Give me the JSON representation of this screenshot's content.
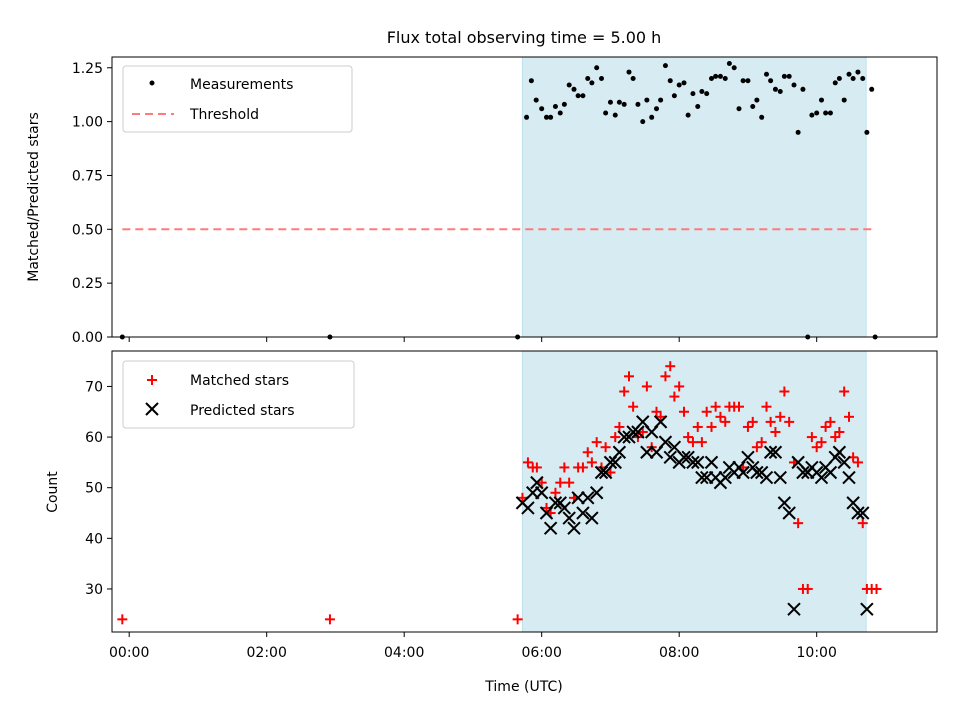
{
  "chart_data": [
    {
      "type": "scatter",
      "title": "Flux total observing time = 5.00 h",
      "xlabel": "",
      "ylabel": "Matched/Predicted stars",
      "xlim": [
        -0.25,
        11.75
      ],
      "ylim": [
        0,
        1.3
      ],
      "yticks": [
        0,
        0.25,
        0.5,
        0.75,
        1.0,
        1.25
      ],
      "ytick_labels": [
        "0.00",
        "0.25",
        "0.50",
        "0.75",
        "1.00",
        "1.25"
      ],
      "shaded_interval": [
        5.72,
        10.72
      ],
      "threshold": {
        "label": "Threshold",
        "value": 0.5,
        "x_range": [
          -0.1,
          10.85
        ],
        "color": "#ff7b7b"
      },
      "legend": [
        "Measurements",
        "Threshold"
      ],
      "legend_position": "upper-left",
      "series": [
        {
          "name": "Measurements",
          "color": "#000000",
          "x": [
            -0.1,
            2.92,
            5.65,
            5.78,
            5.85,
            5.92,
            6.0,
            6.07,
            6.13,
            6.2,
            6.27,
            6.33,
            6.4,
            6.47,
            6.53,
            6.6,
            6.67,
            6.73,
            6.8,
            6.87,
            6.93,
            7.0,
            7.07,
            7.13,
            7.2,
            7.27,
            7.33,
            7.4,
            7.47,
            7.53,
            7.6,
            7.67,
            7.73,
            7.8,
            7.87,
            7.93,
            8.0,
            8.07,
            8.13,
            8.2,
            8.27,
            8.33,
            8.4,
            8.47,
            8.53,
            8.6,
            8.67,
            8.73,
            8.8,
            8.87,
            8.93,
            9.0,
            9.07,
            9.13,
            9.2,
            9.27,
            9.33,
            9.4,
            9.47,
            9.53,
            9.6,
            9.67,
            9.73,
            9.8,
            9.87,
            9.93,
            10.0,
            10.07,
            10.13,
            10.2,
            10.27,
            10.33,
            10.4,
            10.47,
            10.53,
            10.6,
            10.67,
            10.73,
            10.8,
            10.85
          ],
          "y": [
            0.0,
            0.0,
            0.0,
            1.02,
            1.19,
            1.1,
            1.06,
            1.02,
            1.02,
            1.07,
            1.04,
            1.08,
            1.17,
            1.15,
            1.12,
            1.12,
            1.2,
            1.18,
            1.25,
            1.2,
            1.04,
            1.09,
            1.03,
            1.09,
            1.08,
            1.23,
            1.2,
            1.08,
            1.0,
            1.1,
            1.02,
            1.06,
            1.1,
            1.26,
            1.19,
            1.12,
            1.17,
            1.18,
            1.03,
            1.13,
            1.07,
            1.14,
            1.13,
            1.2,
            1.21,
            1.21,
            1.2,
            1.27,
            1.25,
            1.06,
            1.19,
            1.19,
            1.07,
            1.1,
            1.02,
            1.22,
            1.19,
            1.15,
            1.14,
            1.21,
            1.21,
            1.17,
            0.95,
            1.15,
            0.0,
            1.03,
            1.04,
            1.1,
            1.04,
            1.04,
            1.18,
            1.2,
            1.1,
            1.22,
            1.2,
            1.23,
            1.2,
            0.95,
            1.15,
            0.0
          ]
        }
      ]
    },
    {
      "type": "scatter",
      "title": "",
      "xlabel": "Time (UTC)",
      "ylabel": "Count",
      "xlim": [
        -0.25,
        11.75
      ],
      "ylim": [
        21.5,
        77
      ],
      "xticks": [
        0,
        2,
        4,
        6,
        8,
        10
      ],
      "xtick_labels": [
        "00:00",
        "02:00",
        "04:00",
        "06:00",
        "08:00",
        "10:00"
      ],
      "yticks": [
        30,
        40,
        50,
        60,
        70
      ],
      "ytick_labels": [
        "30",
        "40",
        "50",
        "60",
        "70"
      ],
      "shaded_interval": [
        5.72,
        10.72
      ],
      "legend": [
        "Matched stars",
        "Predicted stars"
      ],
      "legend_position": "upper-left",
      "series": [
        {
          "name": "Matched stars",
          "marker": "+",
          "color": "#ff0000",
          "x": [
            -0.1,
            2.92,
            5.65,
            5.72,
            5.8,
            5.87,
            5.93,
            6.0,
            6.07,
            6.13,
            6.2,
            6.27,
            6.33,
            6.4,
            6.47,
            6.53,
            6.6,
            6.67,
            6.73,
            6.8,
            6.87,
            6.93,
            7.0,
            7.07,
            7.13,
            7.2,
            7.27,
            7.33,
            7.4,
            7.47,
            7.53,
            7.6,
            7.67,
            7.73,
            7.8,
            7.87,
            7.93,
            8.0,
            8.07,
            8.13,
            8.2,
            8.27,
            8.33,
            8.4,
            8.47,
            8.53,
            8.6,
            8.67,
            8.73,
            8.8,
            8.87,
            8.93,
            9.0,
            9.07,
            9.13,
            9.2,
            9.27,
            9.33,
            9.4,
            9.47,
            9.53,
            9.6,
            9.67,
            9.73,
            9.8,
            9.87,
            9.93,
            10.0,
            10.07,
            10.13,
            10.2,
            10.27,
            10.33,
            10.4,
            10.47,
            10.53,
            10.6,
            10.67,
            10.73,
            10.8,
            10.87
          ],
          "y": [
            24,
            24,
            24,
            48,
            55,
            54,
            54,
            51,
            46,
            45,
            49,
            51,
            54,
            51,
            48,
            54,
            54,
            57,
            55,
            59,
            54,
            58,
            53,
            60,
            62,
            69,
            72,
            66,
            60,
            61,
            70,
            58,
            65,
            64,
            72,
            74,
            68,
            70,
            65,
            60,
            59,
            62,
            59,
            65,
            62,
            66,
            64,
            63,
            66,
            66,
            66,
            54,
            62,
            63,
            58,
            59,
            66,
            63,
            61,
            64,
            69,
            63,
            55,
            43,
            30,
            30,
            60,
            58,
            59,
            62,
            63,
            60,
            61,
            69,
            64,
            56,
            55,
            43,
            30,
            30,
            30
          ]
        },
        {
          "name": "Predicted stars",
          "marker": "x",
          "color": "#000000",
          "x": [
            5.72,
            5.8,
            5.87,
            5.93,
            6.0,
            6.07,
            6.13,
            6.2,
            6.27,
            6.33,
            6.4,
            6.47,
            6.53,
            6.6,
            6.67,
            6.73,
            6.8,
            6.87,
            6.93,
            7.0,
            7.07,
            7.13,
            7.2,
            7.27,
            7.33,
            7.4,
            7.47,
            7.53,
            7.6,
            7.67,
            7.73,
            7.8,
            7.87,
            7.93,
            8.0,
            8.07,
            8.13,
            8.2,
            8.27,
            8.33,
            8.4,
            8.47,
            8.53,
            8.6,
            8.67,
            8.73,
            8.8,
            8.87,
            8.93,
            9.0,
            9.07,
            9.13,
            9.2,
            9.27,
            9.33,
            9.4,
            9.47,
            9.53,
            9.6,
            9.67,
            9.73,
            9.8,
            9.87,
            9.93,
            10.0,
            10.07,
            10.13,
            10.2,
            10.27,
            10.33,
            10.4,
            10.47,
            10.53,
            10.6,
            10.67,
            10.73
          ],
          "y": [
            47,
            46,
            49,
            51,
            49,
            45,
            42,
            47,
            47,
            46,
            44,
            42,
            48,
            45,
            48,
            44,
            49,
            53,
            53,
            55,
            55,
            57,
            60,
            60,
            61,
            61,
            63,
            57,
            61,
            57,
            63,
            59,
            56,
            58,
            55,
            56,
            56,
            55,
            55,
            52,
            52,
            55,
            52,
            51,
            52,
            54,
            53,
            54,
            53,
            56,
            54,
            53,
            53,
            52,
            57,
            57,
            52,
            47,
            45,
            26,
            55,
            53,
            53,
            54,
            53,
            52,
            54,
            53,
            56,
            57,
            55,
            52,
            47,
            45,
            45,
            26
          ]
        }
      ]
    }
  ]
}
